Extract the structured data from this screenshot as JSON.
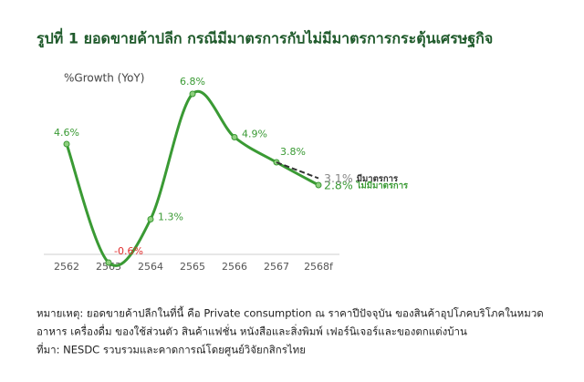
{
  "chart_data": {
    "type": "line",
    "title": "รูปที่ 1 ยอดขายค้าปลีก กรณีมีมาตรการกับไม่มีมาตรการกระตุ้นเศรษฐกิจ",
    "y_label": "%Growth (YoY)",
    "categories": [
      "2562",
      "2563",
      "2564",
      "2565",
      "2566",
      "2567",
      "2568f"
    ],
    "series": [
      {
        "name": "ไม่มีมาตรการ",
        "color": "#3a9a34",
        "values": [
          4.6,
          -0.6,
          1.3,
          6.8,
          4.9,
          3.8,
          2.8
        ],
        "value_labels": [
          "4.6%",
          "-0.6%",
          "1.3%",
          "6.8%",
          "4.9%",
          "3.8%",
          "2.8%"
        ]
      },
      {
        "name": "มีมาตรการ",
        "color": "#333333",
        "dashed": true,
        "values": [
          null,
          null,
          null,
          null,
          null,
          3.8,
          3.1
        ],
        "value_labels": [
          null,
          null,
          null,
          null,
          null,
          null,
          "3.1%"
        ]
      }
    ],
    "negative_label_color": "#e03030",
    "ylim": [
      -1,
      7.5
    ],
    "notes": [
      "หมายเหตุ: ยอดขายค้าปลีกในที่นี้ คือ Private consumption ณ ราคาปีปัจจุบัน ของสินค้าอุปโภคบริโภคในหมวด",
      "อาหาร เครื่องดื่ม ของใช้ส่วนตัว สินค้าแฟชั่น หนังสือและสิ่งพิมพ์ เฟอร์นิเจอร์และของตกแต่งบ้าน",
      "ที่มา: NESDC รวบรวมและคาดการณ์โดยศูนย์วิจัยกสิกรไทย"
    ]
  }
}
